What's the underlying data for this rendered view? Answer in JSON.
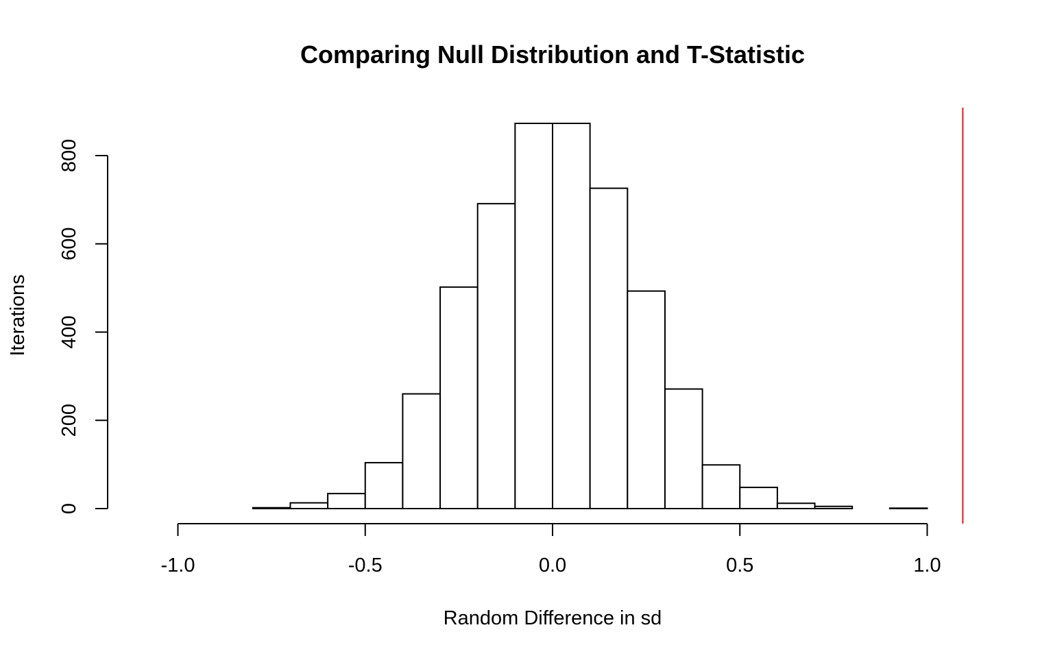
{
  "chart_data": {
    "type": "bar",
    "subtype": "histogram",
    "title": "Comparing Null Distribution and T-Statistic",
    "xlabel": "Random Difference in sd",
    "ylabel": "Iterations",
    "xlim": [
      -1.0,
      1.0
    ],
    "ylim": [
      0,
      800
    ],
    "x_ticks": [
      "-1.0",
      "-0.5",
      "0.0",
      "0.5",
      "1.0"
    ],
    "y_ticks": [
      "0",
      "200",
      "400",
      "600",
      "800"
    ],
    "grid": false,
    "legend": "none",
    "bins": [
      {
        "start": -0.8,
        "end": -0.7,
        "count": 2
      },
      {
        "start": -0.7,
        "end": -0.6,
        "count": 13
      },
      {
        "start": -0.6,
        "end": -0.5,
        "count": 34
      },
      {
        "start": -0.5,
        "end": -0.4,
        "count": 104
      },
      {
        "start": -0.4,
        "end": -0.3,
        "count": 260
      },
      {
        "start": -0.3,
        "end": -0.2,
        "count": 502
      },
      {
        "start": -0.2,
        "end": -0.1,
        "count": 691
      },
      {
        "start": -0.1,
        "end": 0.0,
        "count": 873
      },
      {
        "start": 0.0,
        "end": 0.1,
        "count": 873
      },
      {
        "start": 0.1,
        "end": 0.2,
        "count": 726
      },
      {
        "start": 0.2,
        "end": 0.3,
        "count": 493
      },
      {
        "start": 0.3,
        "end": 0.4,
        "count": 271
      },
      {
        "start": 0.4,
        "end": 0.5,
        "count": 99
      },
      {
        "start": 0.5,
        "end": 0.6,
        "count": 48
      },
      {
        "start": 0.6,
        "end": 0.7,
        "count": 12
      },
      {
        "start": 0.7,
        "end": 0.8,
        "count": 5
      },
      {
        "start": 0.8,
        "end": 0.9,
        "count": 0
      },
      {
        "start": 0.9,
        "end": 1.0,
        "count": 1
      }
    ],
    "reference_line": {
      "x": 1.095,
      "color": "#e31a1c"
    },
    "colors": {
      "bar_fill": "#ffffff",
      "bar_stroke": "#000000",
      "reference_line": "#e31a1c"
    }
  }
}
